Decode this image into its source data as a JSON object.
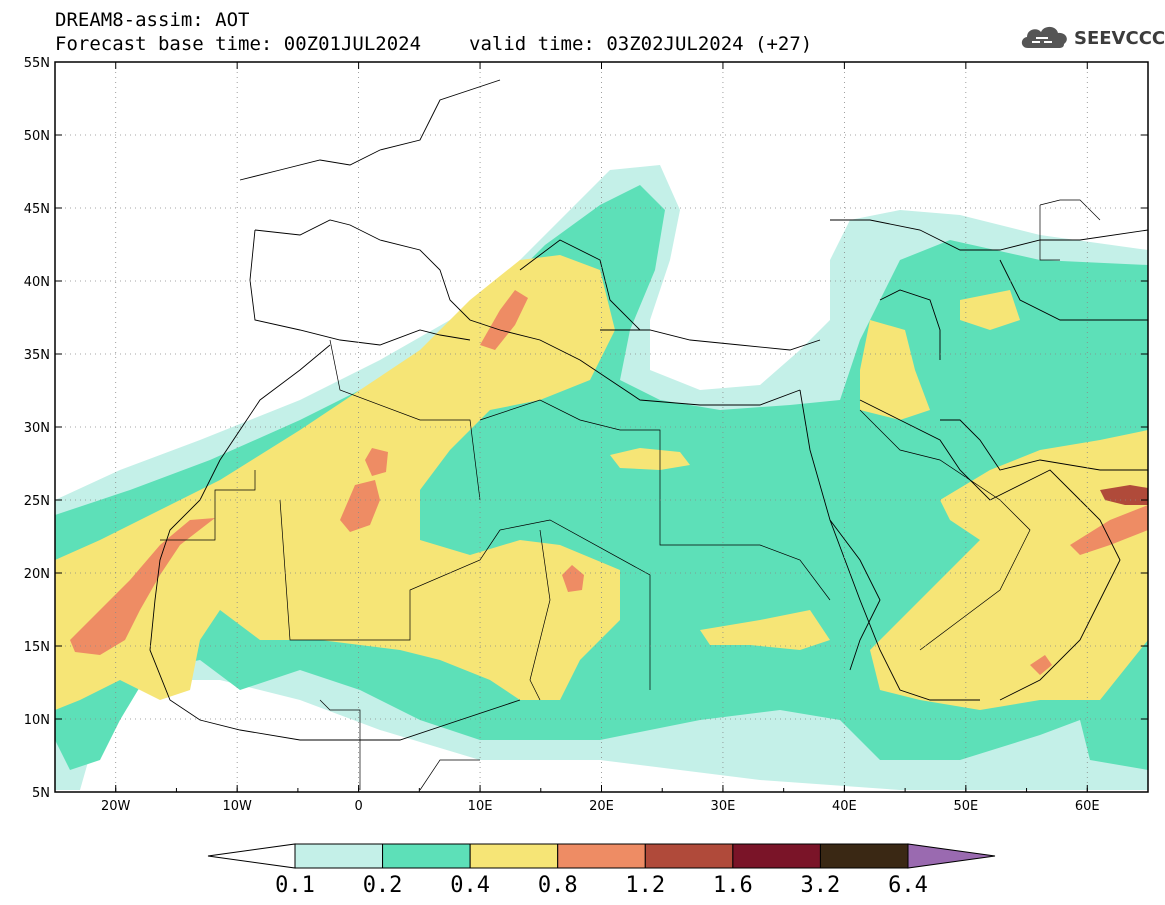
{
  "header": {
    "title": "DREAM8-assim: AOT",
    "base_time": "Forecast base time: 00Z01JUL2024",
    "valid_time": "valid time: 03Z02JUL2024 (+27)"
  },
  "logo": {
    "text": "SEEVCCC",
    "icon": "cloud-logo-icon"
  },
  "map": {
    "lon_range": [
      -25,
      65
    ],
    "lat_range": [
      5,
      55
    ],
    "lat_labels": [
      "55N",
      "50N",
      "45N",
      "40N",
      "35N",
      "30N",
      "25N",
      "20N",
      "15N",
      "10N",
      "5N"
    ],
    "lon_labels": [
      "20W",
      "10W",
      "0",
      "10E",
      "20E",
      "30E",
      "40E",
      "50E",
      "60E"
    ]
  },
  "colorbar": {
    "labels": [
      "0.1",
      "0.2",
      "0.4",
      "0.8",
      "1.2",
      "1.6",
      "3.2",
      "6.4"
    ],
    "colors": [
      "#ffffff",
      "#c4f0e8",
      "#5de0b8",
      "#f6e576",
      "#ee8c64",
      "#b04a3a",
      "#7a1428",
      "#3a2814",
      "#9a6ab0"
    ]
  }
}
